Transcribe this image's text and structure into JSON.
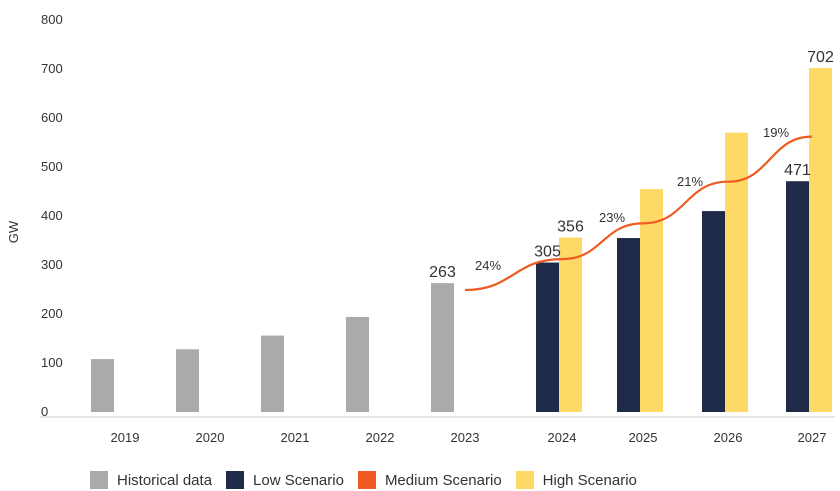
{
  "chart_data": {
    "type": "bar",
    "ylabel": "GW",
    "xlabel": "",
    "ylim": [
      0,
      800
    ],
    "yticks": [
      0,
      100,
      200,
      300,
      400,
      500,
      600,
      700,
      800
    ],
    "categories": [
      "2019",
      "2020",
      "2021",
      "2022",
      "2023",
      "2024",
      "2025",
      "2026",
      "2027"
    ],
    "series": [
      {
        "name": "Historical data",
        "color": "#aaaaaa",
        "values": [
          108,
          128,
          156,
          194,
          263,
          null,
          null,
          null,
          null
        ]
      },
      {
        "name": "Low Scenario",
        "color": "#1e2a47",
        "values": [
          null,
          null,
          null,
          null,
          null,
          305,
          355,
          410,
          471
        ]
      },
      {
        "name": "Medium Scenario",
        "color": "#f05a23",
        "type": "line",
        "values": [
          null,
          null,
          null,
          null,
          249,
          312,
          385,
          470,
          562
        ]
      },
      {
        "name": "High Scenario",
        "color": "#ffd966",
        "values": [
          null,
          null,
          null,
          null,
          null,
          356,
          455,
          570,
          702
        ]
      }
    ],
    "data_labels": [
      {
        "category": "2023",
        "series": "Historical data",
        "text": "263"
      },
      {
        "category": "2024",
        "series": "Low Scenario",
        "text": "305"
      },
      {
        "category": "2024",
        "series": "High Scenario",
        "text": "356"
      },
      {
        "category": "2027",
        "series": "Low Scenario",
        "text": "471"
      },
      {
        "category": "2027",
        "series": "High Scenario",
        "text": "702"
      }
    ],
    "growth_labels": [
      {
        "between": [
          "2023",
          "2024"
        ],
        "text": "24%"
      },
      {
        "between": [
          "2024",
          "2025"
        ],
        "text": "23%"
      },
      {
        "between": [
          "2025",
          "2026"
        ],
        "text": "21%"
      },
      {
        "between": [
          "2026",
          "2027"
        ],
        "text": "19%"
      }
    ],
    "legend_position": "bottom",
    "grid": false
  }
}
